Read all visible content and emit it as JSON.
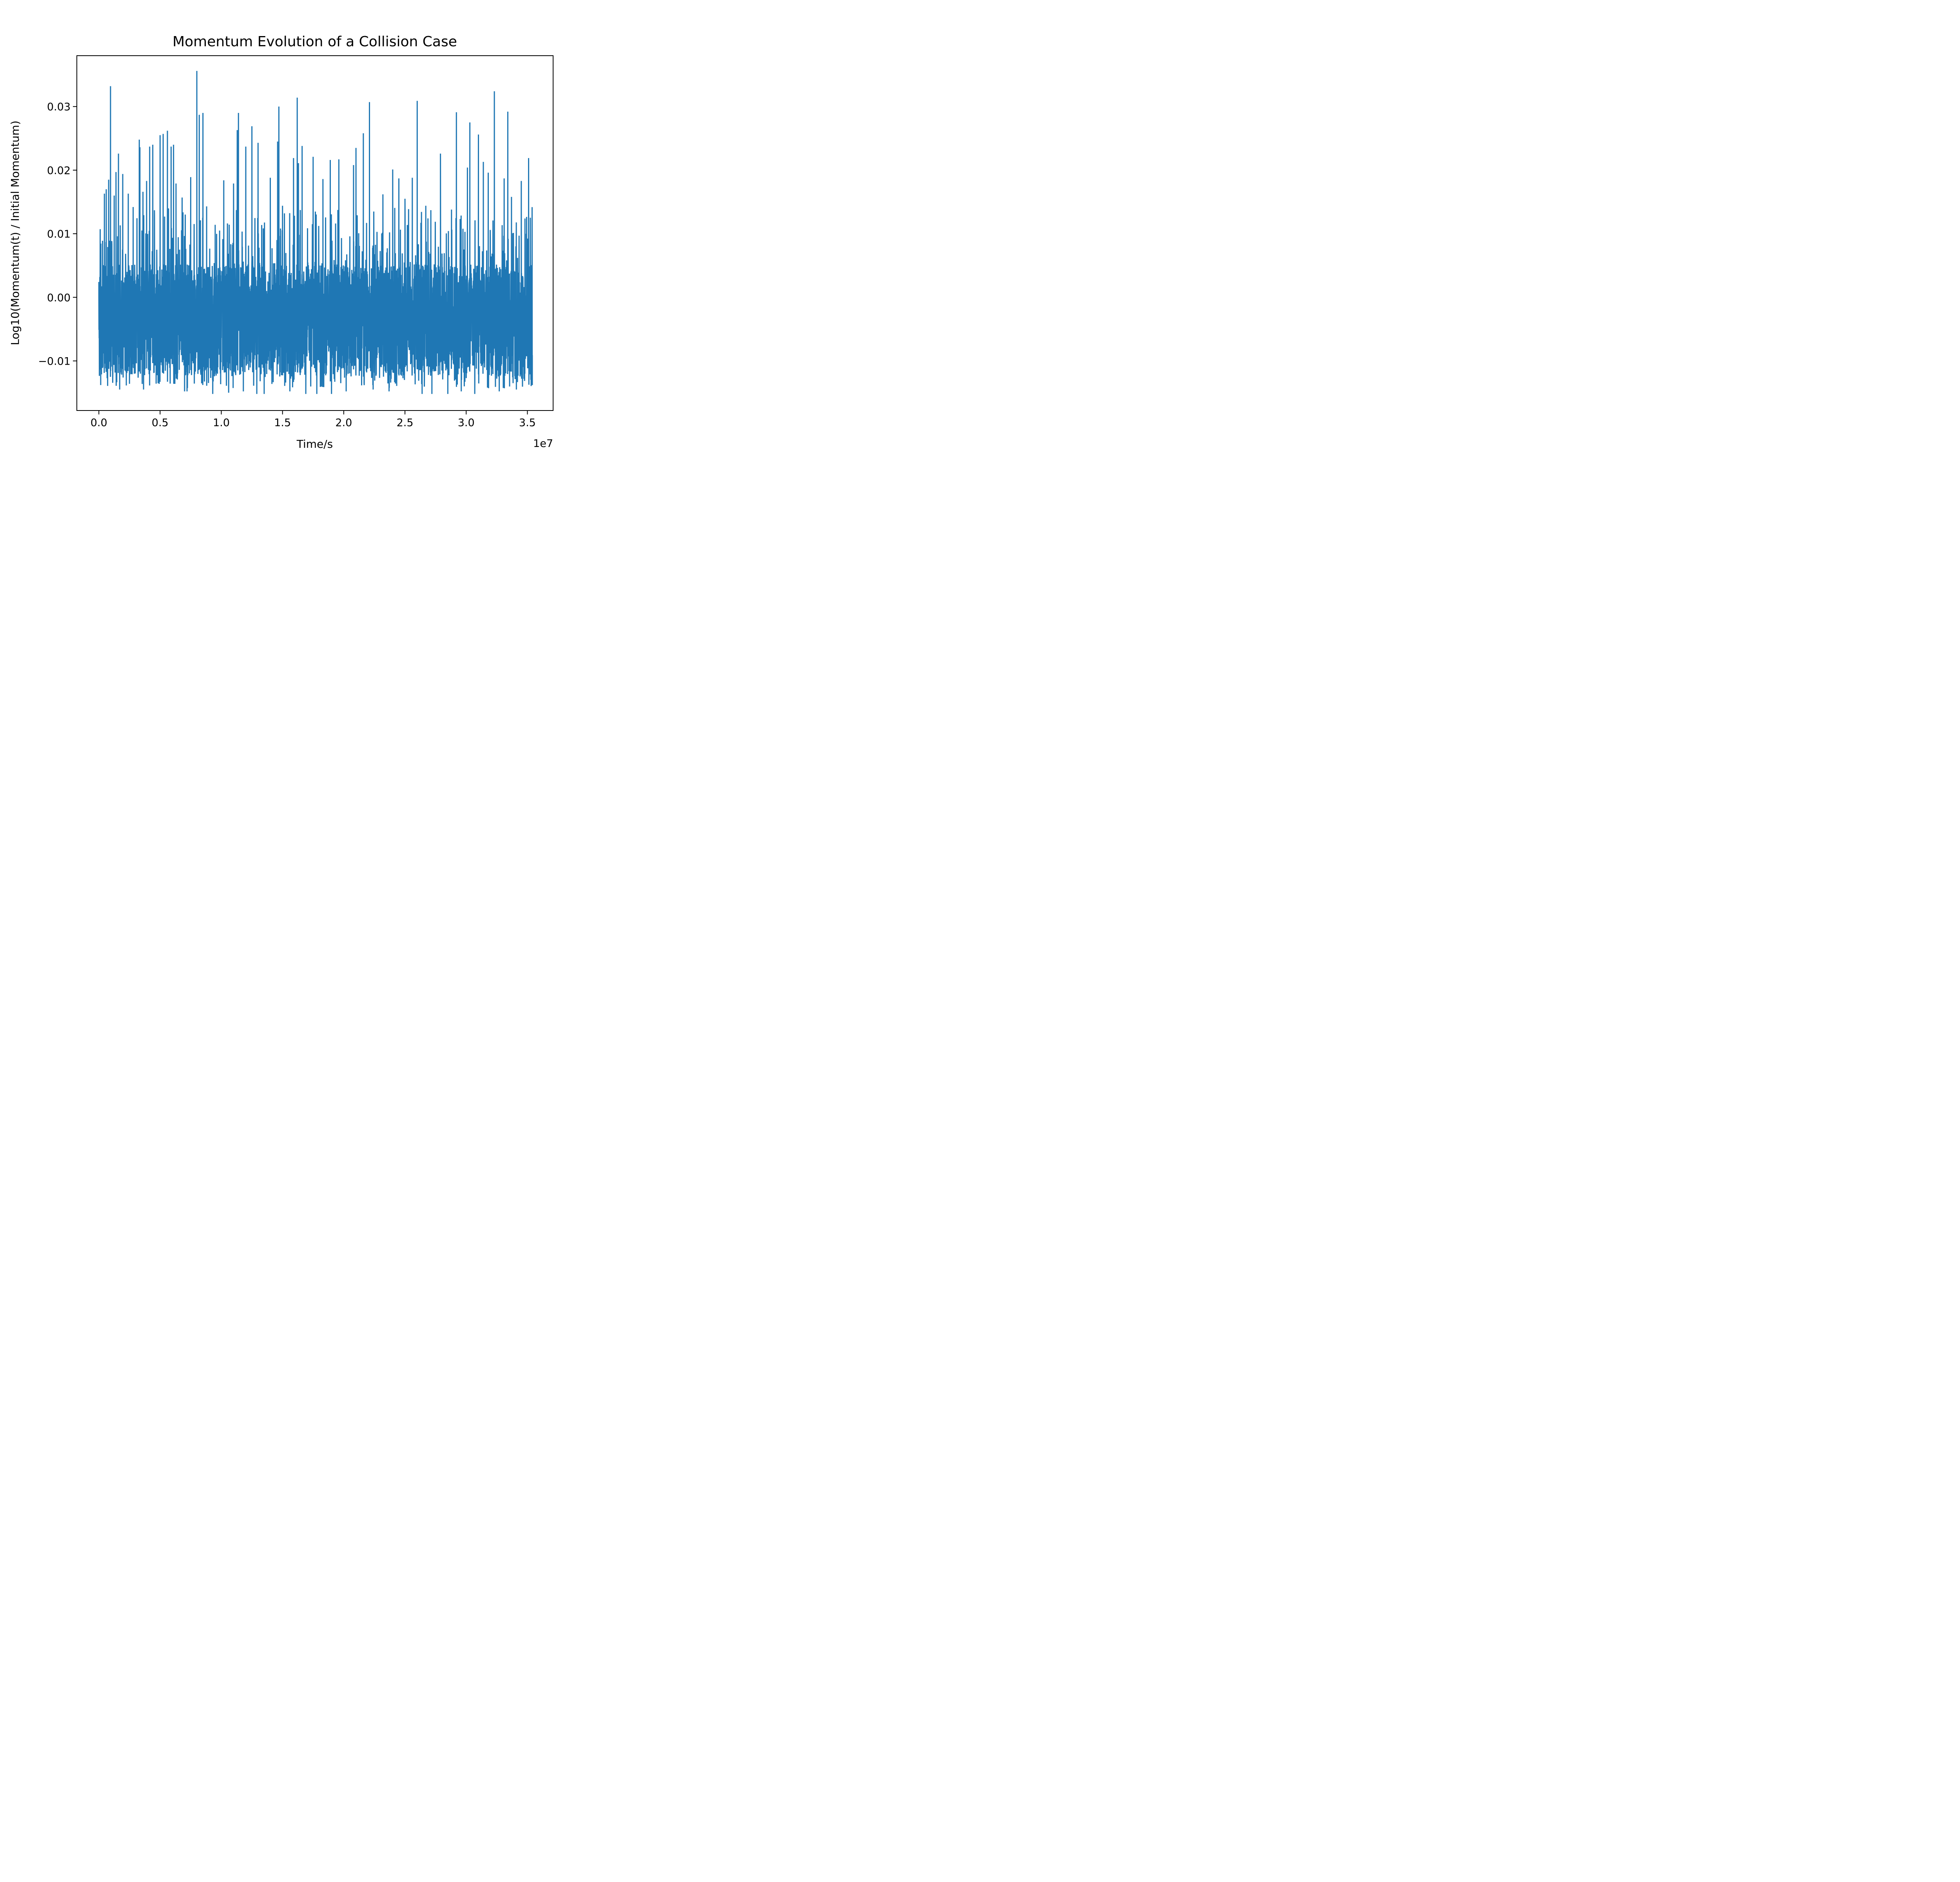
{
  "chart_data": {
    "type": "line",
    "title": "Momentum Evolution of a Collision Case",
    "xlabel": "Time/s",
    "ylabel": "Log10(Momentum(t) / Initial Momentum)",
    "x_offset_label": "1e7",
    "x_scale_factor": 10000000,
    "xlim": [
      -1800000,
      37100000
    ],
    "ylim": [
      -0.0178,
      0.038
    ],
    "grid": false,
    "legend": "none",
    "line_color": "#1f77b4",
    "x_ticks": [
      {
        "value": 0,
        "label": "0.0"
      },
      {
        "value": 5000000,
        "label": "0.5"
      },
      {
        "value": 10000000,
        "label": "1.0"
      },
      {
        "value": 15000000,
        "label": "1.5"
      },
      {
        "value": 20000000,
        "label": "2.0"
      },
      {
        "value": 25000000,
        "label": "2.5"
      },
      {
        "value": 30000000,
        "label": "3.0"
      },
      {
        "value": 35000000,
        "label": "3.5"
      }
    ],
    "y_ticks": [
      {
        "value": -0.01,
        "label": "−0.01"
      },
      {
        "value": 0.0,
        "label": "0.00"
      },
      {
        "value": 0.01,
        "label": "0.01"
      },
      {
        "value": 0.02,
        "label": "0.02"
      },
      {
        "value": 0.03,
        "label": "0.03"
      }
    ],
    "series": [
      {
        "x_start": 0,
        "x_end": 35400000,
        "baseline": -0.003,
        "envelope_lower": -0.0123,
        "envelope_upper": 0.0052,
        "extremes": [
          {
            "x": 0,
            "y": 0.0
          },
          {
            "x": 50000,
            "y": 0.0022
          },
          {
            "x": 150000,
            "y": -0.0138
          },
          {
            "x": 300000,
            "y": 0.0089
          },
          {
            "x": 450000,
            "y": 0.0163
          },
          {
            "x": 600000,
            "y": 0.017
          },
          {
            "x": 800000,
            "y": 0.0185
          },
          {
            "x": 950000,
            "y": 0.0332
          },
          {
            "x": 1250000,
            "y": 0.016
          },
          {
            "x": 1400000,
            "y": 0.0197
          },
          {
            "x": 1600000,
            "y": 0.0226
          },
          {
            "x": 1700000,
            "y": -0.0145
          },
          {
            "x": 1950000,
            "y": 0.0194
          },
          {
            "x": 2400000,
            "y": 0.0163
          },
          {
            "x": 2500000,
            "y": -0.0136
          },
          {
            "x": 2800000,
            "y": 0.0142
          },
          {
            "x": 3300000,
            "y": 0.0248
          },
          {
            "x": 3350000,
            "y": 0.0236
          },
          {
            "x": 3600000,
            "y": 0.0166
          },
          {
            "x": 3650000,
            "y": -0.0145
          },
          {
            "x": 3900000,
            "y": 0.0183
          },
          {
            "x": 4150000,
            "y": 0.0237
          },
          {
            "x": 4400000,
            "y": 0.024
          },
          {
            "x": 5000000,
            "y": 0.0255
          },
          {
            "x": 5250000,
            "y": 0.0257
          },
          {
            "x": 5600000,
            "y": 0.0262
          },
          {
            "x": 5900000,
            "y": 0.0237
          },
          {
            "x": 6100000,
            "y": 0.024
          },
          {
            "x": 6300000,
            "y": 0.0179
          },
          {
            "x": 6800000,
            "y": 0.0157
          },
          {
            "x": 7000000,
            "y": -0.0148
          },
          {
            "x": 7200000,
            "y": -0.0148
          },
          {
            "x": 7500000,
            "y": 0.0189
          },
          {
            "x": 8000000,
            "y": 0.0356
          },
          {
            "x": 8200000,
            "y": 0.0287
          },
          {
            "x": 8500000,
            "y": 0.029
          },
          {
            "x": 8800000,
            "y": 0.0143
          },
          {
            "x": 9300000,
            "y": -0.0152
          },
          {
            "x": 9500000,
            "y": 0.0114
          },
          {
            "x": 10200000,
            "y": 0.0184
          },
          {
            "x": 10600000,
            "y": -0.015
          },
          {
            "x": 11000000,
            "y": 0.0179
          },
          {
            "x": 11300000,
            "y": 0.0263
          },
          {
            "x": 11400000,
            "y": 0.029
          },
          {
            "x": 11800000,
            "y": -0.0148
          },
          {
            "x": 12000000,
            "y": 0.0237
          },
          {
            "x": 12500000,
            "y": 0.0269
          },
          {
            "x": 12900000,
            "y": -0.0152
          },
          {
            "x": 13000000,
            "y": 0.0243
          },
          {
            "x": 13500000,
            "y": -0.0152
          },
          {
            "x": 14000000,
            "y": 0.0188
          },
          {
            "x": 14600000,
            "y": 0.0245
          },
          {
            "x": 14700000,
            "y": 0.03
          },
          {
            "x": 15000000,
            "y": 0.0144
          },
          {
            "x": 15600000,
            "y": -0.0148
          },
          {
            "x": 15900000,
            "y": 0.0219
          },
          {
            "x": 16200000,
            "y": 0.0314
          },
          {
            "x": 16300000,
            "y": 0.0211
          },
          {
            "x": 16600000,
            "y": 0.0238
          },
          {
            "x": 16900000,
            "y": -0.0152
          },
          {
            "x": 17500000,
            "y": 0.0221
          },
          {
            "x": 17800000,
            "y": -0.0152
          },
          {
            "x": 18300000,
            "y": 0.0186
          },
          {
            "x": 18900000,
            "y": 0.0216
          },
          {
            "x": 19000000,
            "y": -0.0152
          },
          {
            "x": 19600000,
            "y": 0.0217
          },
          {
            "x": 20200000,
            "y": -0.0148
          },
          {
            "x": 20800000,
            "y": 0.0208
          },
          {
            "x": 21000000,
            "y": 0.0235
          },
          {
            "x": 21600000,
            "y": 0.0258
          },
          {
            "x": 22100000,
            "y": 0.0307
          },
          {
            "x": 22400000,
            "y": -0.0145
          },
          {
            "x": 23200000,
            "y": 0.0162
          },
          {
            "x": 23700000,
            "y": -0.0148
          },
          {
            "x": 24000000,
            "y": 0.0201
          },
          {
            "x": 24500000,
            "y": 0.0187
          },
          {
            "x": 25000000,
            "y": 0.0155
          },
          {
            "x": 25600000,
            "y": 0.0188
          },
          {
            "x": 26000000,
            "y": 0.0309
          },
          {
            "x": 26400000,
            "y": -0.0152
          },
          {
            "x": 26700000,
            "y": 0.0144
          },
          {
            "x": 27200000,
            "y": -0.0152
          },
          {
            "x": 27900000,
            "y": 0.0226
          },
          {
            "x": 28500000,
            "y": -0.0152
          },
          {
            "x": 28800000,
            "y": 0.0138
          },
          {
            "x": 29200000,
            "y": 0.0291
          },
          {
            "x": 29600000,
            "y": -0.0148
          },
          {
            "x": 29900000,
            "y": 0.0103
          },
          {
            "x": 30100000,
            "y": 0.0204
          },
          {
            "x": 30300000,
            "y": 0.0275
          },
          {
            "x": 30700000,
            "y": -0.0152
          },
          {
            "x": 31000000,
            "y": 0.0256
          },
          {
            "x": 31400000,
            "y": 0.0213
          },
          {
            "x": 31800000,
            "y": 0.0196
          },
          {
            "x": 32300000,
            "y": 0.0324
          },
          {
            "x": 32700000,
            "y": -0.0148
          },
          {
            "x": 33100000,
            "y": 0.0187
          },
          {
            "x": 33400000,
            "y": 0.0292
          },
          {
            "x": 33700000,
            "y": 0.0158
          },
          {
            "x": 34100000,
            "y": -0.0145
          },
          {
            "x": 34500000,
            "y": 0.0183
          },
          {
            "x": 34800000,
            "y": 0.0124
          },
          {
            "x": 35100000,
            "y": 0.0219
          },
          {
            "x": 35400000,
            "y": -0.0138
          }
        ]
      }
    ]
  }
}
